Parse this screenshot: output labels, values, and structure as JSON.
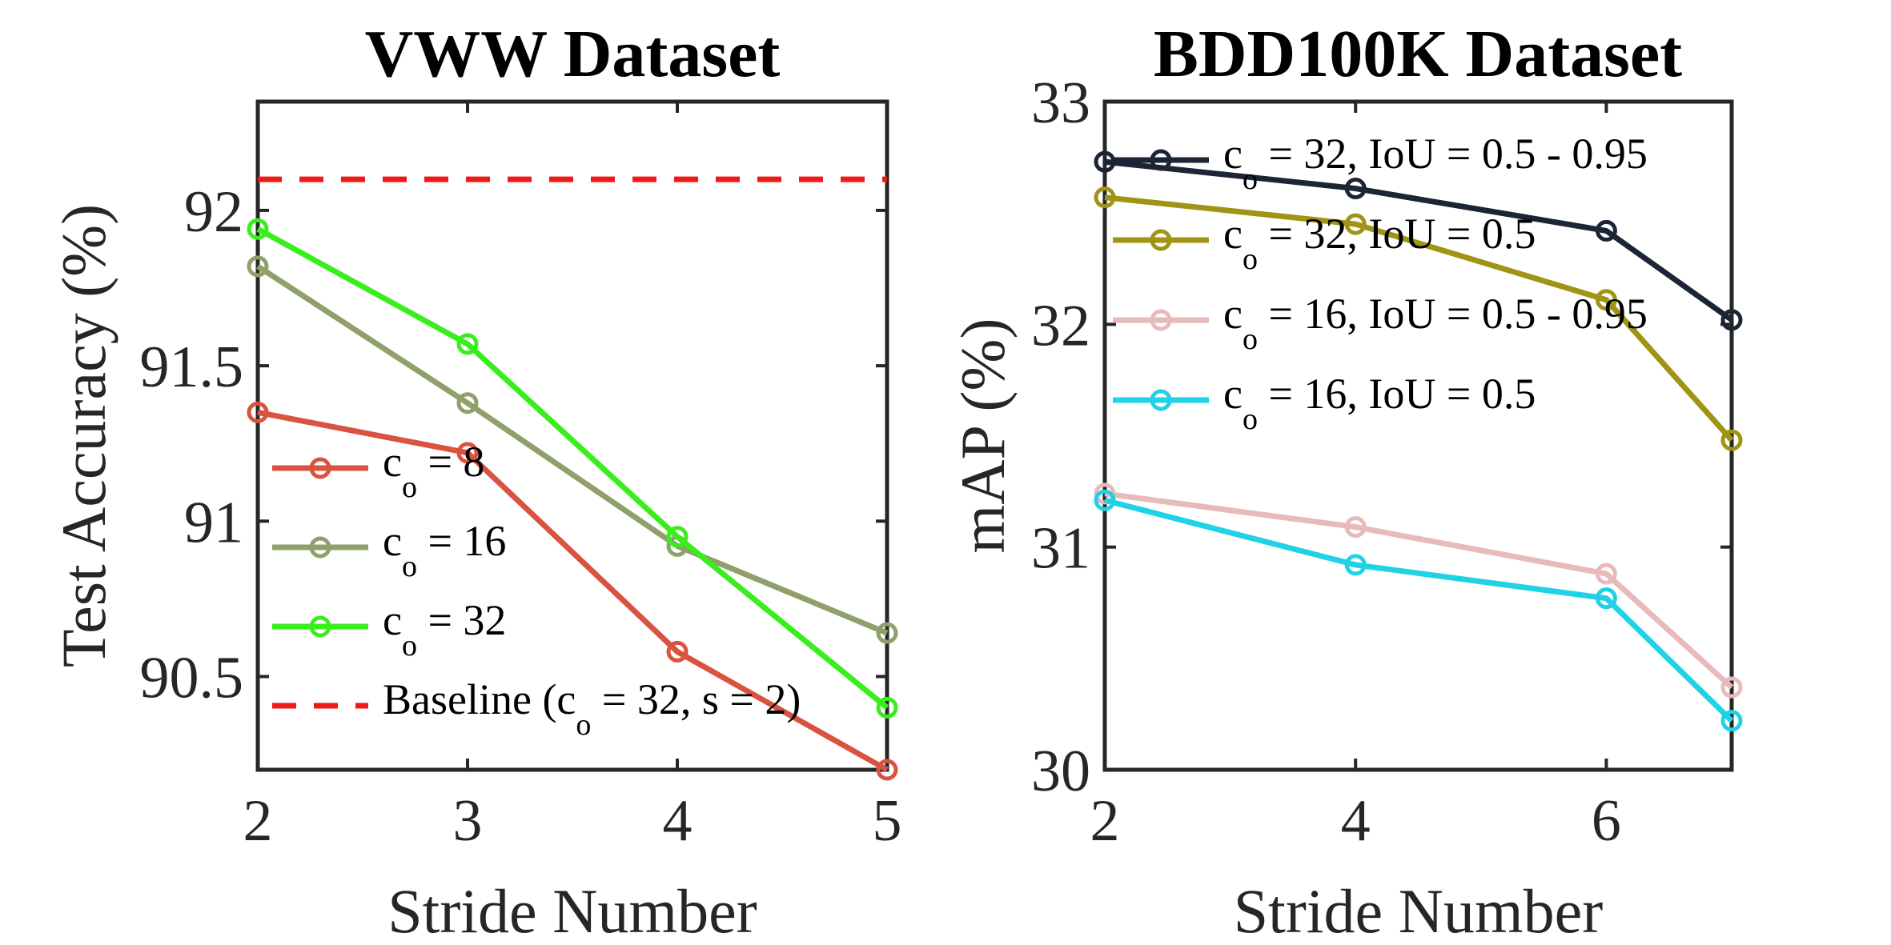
{
  "chart_data": [
    {
      "type": "line",
      "title": "VWW Dataset",
      "xlabel": "Stride Number",
      "ylabel": "Test Accuracy (%)",
      "xlim": [
        2,
        5
      ],
      "ylim": [
        90.2,
        92.35
      ],
      "xticks": [
        2,
        3,
        4,
        5
      ],
      "xtick_labels": [
        "2",
        "3",
        "4",
        "5"
      ],
      "yticks": [
        90.5,
        91,
        91.5,
        92
      ],
      "ytick_labels": [
        "90.5",
        "91",
        "91.5",
        "92"
      ],
      "legend_position": "bottom-left",
      "series": [
        {
          "name": "c_o = 8",
          "legend_main": "c",
          "legend_sub": "o",
          "legend_rest": " = 8",
          "color": "#D95340",
          "style": "solid",
          "marker": "circle",
          "x": [
            2,
            3,
            4,
            5
          ],
          "y": [
            91.35,
            91.22,
            90.58,
            90.2
          ]
        },
        {
          "name": "c_o = 16",
          "legend_main": "c",
          "legend_sub": "o",
          "legend_rest": " = 16",
          "color": "#8FA06A",
          "style": "solid",
          "marker": "circle",
          "x": [
            2,
            3,
            4,
            5
          ],
          "y": [
            91.82,
            91.38,
            90.92,
            90.64
          ]
        },
        {
          "name": "c_o = 32",
          "legend_main": "c",
          "legend_sub": "o",
          "legend_rest": " = 32",
          "color": "#3AEE1E",
          "style": "solid",
          "marker": "circle",
          "x": [
            2,
            3,
            4,
            5
          ],
          "y": [
            91.94,
            91.57,
            90.95,
            90.4
          ]
        },
        {
          "name": "Baseline (c_o = 32, s = 2)",
          "legend_main": "Baseline (c",
          "legend_sub": "o",
          "legend_rest": " = 32, s = 2)",
          "color": "#EE1A1A",
          "style": "dashed",
          "marker": "none",
          "x": [
            2,
            5
          ],
          "y": [
            92.1,
            92.1
          ]
        }
      ]
    },
    {
      "type": "line",
      "title": "BDD100K Dataset",
      "xlabel": "Stride Number",
      "ylabel": "mAP (%)",
      "xlim": [
        2,
        7
      ],
      "ylim": [
        30,
        33
      ],
      "xticks": [
        2,
        4,
        6
      ],
      "xtick_labels": [
        "2",
        "4",
        "6"
      ],
      "yticks": [
        30,
        31,
        32,
        33
      ],
      "ytick_labels": [
        "30",
        "31",
        "32",
        "33"
      ],
      "legend_position": "top-right",
      "series": [
        {
          "name": "c_o = 32, IoU = 0.5 - 0.95",
          "legend_main": "c",
          "legend_sub": "o",
          "legend_rest": " = 32, IoU = 0.5 - 0.95",
          "color": "#1C2535",
          "style": "solid",
          "marker": "circle",
          "x": [
            2,
            4,
            6,
            7
          ],
          "y": [
            32.73,
            32.61,
            32.42,
            32.02
          ]
        },
        {
          "name": "c_o = 32, IoU = 0.5",
          "legend_main": "c",
          "legend_sub": "o",
          "legend_rest": " = 32, IoU = 0.5",
          "color": "#A09414",
          "style": "solid",
          "marker": "circle",
          "x": [
            2,
            4,
            6,
            7
          ],
          "y": [
            32.57,
            32.45,
            32.11,
            31.48
          ]
        },
        {
          "name": "c_o = 16, IoU = 0.5 - 0.95",
          "legend_main": "c",
          "legend_sub": "o",
          "legend_rest": " = 16, IoU = 0.5 - 0.95",
          "color": "#E8BABA",
          "style": "solid",
          "marker": "circle",
          "x": [
            2,
            4,
            6,
            7
          ],
          "y": [
            31.24,
            31.09,
            30.88,
            30.37
          ]
        },
        {
          "name": "c_o = 16, IoU = 0.5",
          "legend_main": "c",
          "legend_sub": "o",
          "legend_rest": " = 16, IoU = 0.5",
          "color": "#1FD2E6",
          "style": "solid",
          "marker": "circle",
          "x": [
            2,
            4,
            6,
            7
          ],
          "y": [
            31.21,
            30.92,
            30.77,
            30.22
          ]
        }
      ]
    }
  ]
}
